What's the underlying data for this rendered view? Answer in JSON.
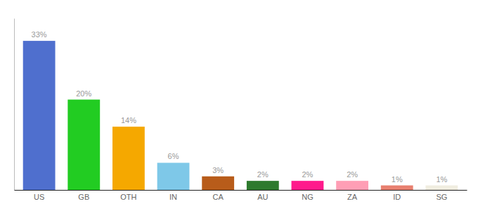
{
  "chart_data": {
    "type": "bar",
    "categories": [
      "US",
      "GB",
      "OTH",
      "IN",
      "CA",
      "AU",
      "NG",
      "ZA",
      "ID",
      "SG"
    ],
    "values": [
      33,
      20,
      14,
      6,
      3,
      2,
      2,
      2,
      1,
      1
    ],
    "value_labels": [
      "33%",
      "20%",
      "14%",
      "6%",
      "3%",
      "2%",
      "2%",
      "2%",
      "1%",
      "1%"
    ],
    "colors": [
      "#4f6fce",
      "#22cc22",
      "#f5a800",
      "#7ec8e8",
      "#b85c1a",
      "#2d7a2d",
      "#ff1a8c",
      "#ff9eb5",
      "#e88070",
      "#f0ede0"
    ],
    "ylim": [
      0,
      38
    ],
    "data_labels": true,
    "tick_labels": "x"
  }
}
